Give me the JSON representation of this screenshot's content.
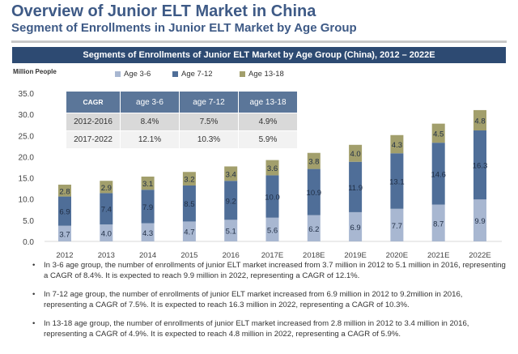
{
  "title": "Overview of Junior ELT Market in China",
  "subtitle": "Segment of Enrollments in Junior ELT Market by Age Group",
  "colors": {
    "age36": "#a8b7d1",
    "age712": "#4f6e98",
    "age1318": "#a29f6c",
    "header": "#2d4a72"
  },
  "table": {
    "headers": [
      "CAGR",
      "age 3-6",
      "age 7-12",
      "age 13-18"
    ],
    "rows": [
      [
        "2012-2016",
        "8.4%",
        "7.5%",
        "4.9%"
      ],
      [
        "2017-2022",
        "12.1%",
        "10.3%",
        "5.9%"
      ]
    ]
  },
  "bullets": [
    "In 3-6 age group, the number of enrollments of junior ELT market increased from 3.7 million in 2012 to 5.1 million in 2016, representing a CAGR of 8.4%. It is expected to reach 9.9 million in 2022, representing a CAGR of 12.1%.",
    "In 7-12 age group, the number of enrollments of junior ELT market increased from 6.9 million in 2012 to 9.2million in 2016, representing a CAGR of 7.5%. It is expected to reach 16.3 million in 2022, representing a CAGR of 10.3%.",
    "In 13-18 age group, the number of enrollments of junior ELT market increased from 2.8 million in 2012 to 3.4 million in 2016, representing a CAGR of 4.9%. It is expected to reach 4.8 million in 2022, representing a CAGR of 5.9%."
  ],
  "chart_data": {
    "type": "bar",
    "stacked": true,
    "title": "Segments of  Enrollments of Junior ELT Market by Age Group (China), 2012 – 2022E",
    "ylabel": "Million People",
    "ylim": [
      0,
      35
    ],
    "yticks": [
      "0.0",
      "5.0",
      "10.0",
      "15.0",
      "20.0",
      "25.0",
      "30.0",
      "35.0"
    ],
    "legend_position": "top",
    "categories": [
      "2012",
      "2013",
      "2014",
      "2015",
      "2016",
      "2017E",
      "2018E",
      "2019E",
      "2020E",
      "2021E",
      "2022E"
    ],
    "series": [
      {
        "name": "Age 3-6",
        "values": [
          3.7,
          4.0,
          4.3,
          4.7,
          5.1,
          5.6,
          6.2,
          6.9,
          7.7,
          8.7,
          9.9
        ]
      },
      {
        "name": "Age 7-12",
        "values": [
          6.9,
          7.4,
          7.9,
          8.5,
          9.2,
          10.0,
          10.9,
          11.9,
          13.1,
          14.6,
          16.3
        ]
      },
      {
        "name": "Age 13-18",
        "values": [
          2.8,
          2.9,
          3.1,
          3.2,
          3.4,
          3.6,
          3.8,
          4.0,
          4.3,
          4.5,
          4.8
        ]
      }
    ]
  }
}
